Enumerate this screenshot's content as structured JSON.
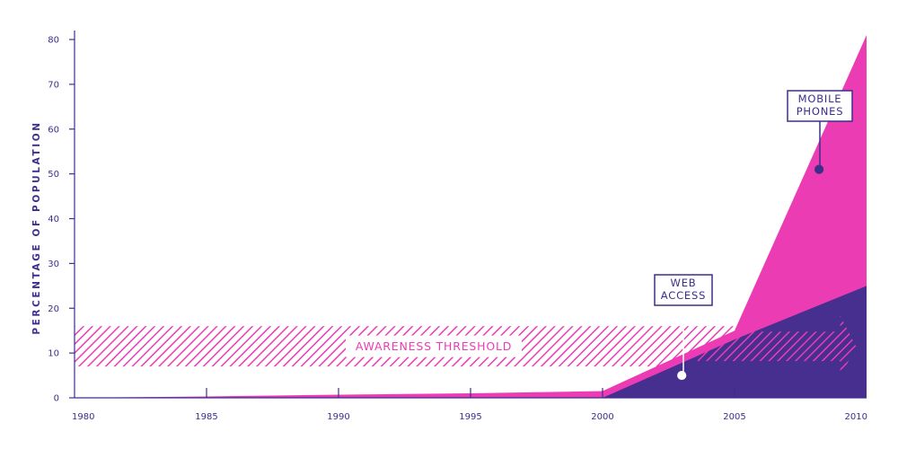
{
  "chart_data": {
    "type": "area",
    "ylabel": "PERCENTAGE OF POPULATION",
    "xlabel": "",
    "xlim": [
      1980,
      2010
    ],
    "ylim": [
      0,
      80
    ],
    "x_ticks": [
      "1980",
      "1985",
      "1990",
      "1995",
      "2000",
      "2005",
      "2010"
    ],
    "y_ticks": [
      "0",
      "10",
      "20",
      "30",
      "40",
      "50",
      "60",
      "70",
      "80"
    ],
    "series": [
      {
        "name": "MOBILE PHONES",
        "color": "#ec3cb4",
        "points": [
          [
            1980,
            0
          ],
          [
            1985,
            0.3
          ],
          [
            1990,
            0.7
          ],
          [
            1995,
            1
          ],
          [
            2000,
            1.5
          ],
          [
            2005,
            15
          ],
          [
            2010,
            81
          ]
        ]
      },
      {
        "name": "WEB ACCESS",
        "color": "#462f8f",
        "points": [
          [
            1980,
            0
          ],
          [
            2000,
            0
          ],
          [
            2005,
            13
          ],
          [
            2010,
            25
          ]
        ]
      }
    ],
    "annotations": [
      {
        "lines": [
          "MOBILE",
          "PHONES"
        ],
        "target": [
          2008.2,
          51
        ]
      },
      {
        "lines": [
          "WEB",
          "ACCESS"
        ],
        "target": [
          2003,
          5
        ]
      }
    ],
    "band": {
      "label": "AWARENESS THRESHOLD",
      "y_range": [
        7,
        16
      ],
      "color": "#ec3cb4"
    },
    "grid": false
  }
}
